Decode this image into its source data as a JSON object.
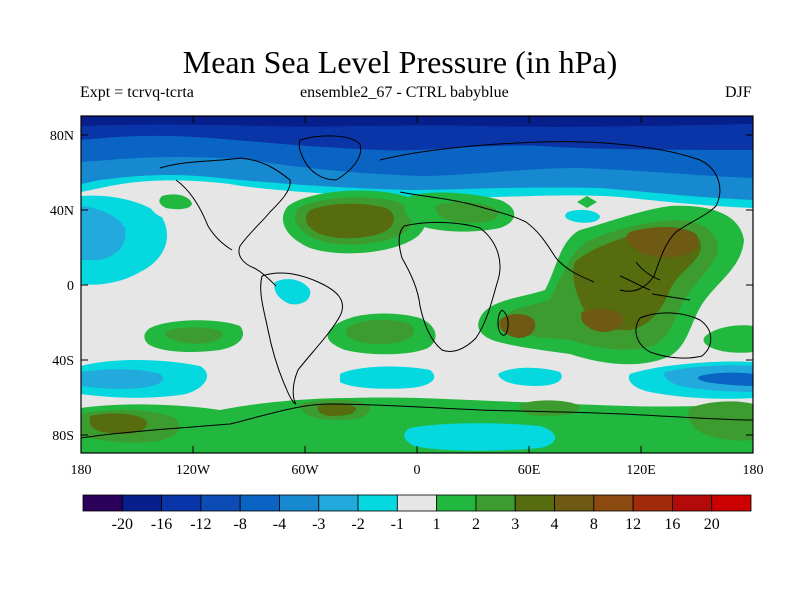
{
  "title": "Mean Sea Level Pressure (in hPa)",
  "subtitle_left": "Expt = tcrvq-tcrta",
  "subtitle_center": "ensemble2_67 - CTRL babyblue",
  "subtitle_right": "DJF",
  "lat_labels": [
    "80N",
    "40N",
    "0",
    "40S",
    "80S"
  ],
  "lon_labels": [
    "180",
    "120W",
    "60W",
    "0",
    "60E",
    "120E",
    "180"
  ],
  "colorbar": {
    "labels": [
      "-20",
      "-16",
      "-12",
      "-8",
      "-4",
      "-3",
      "-2",
      "-1",
      "1",
      "2",
      "3",
      "4",
      "8",
      "12",
      "16",
      "20"
    ],
    "colors": [
      "#2a005a",
      "#061f8a",
      "#0a35a8",
      "#0c4cb4",
      "#0a64c4",
      "#1689d0",
      "#22aadc",
      "#06d8e0",
      "#e6e6e6",
      "#22b840",
      "#3c9c30",
      "#566c0e",
      "#6e5a12",
      "#8a4a10",
      "#a02a0a",
      "#b40a0a",
      "#cc0000"
    ]
  },
  "legend_colors": {
    "ocean_bg": "#e6e6e6",
    "coast": "#000000"
  }
}
